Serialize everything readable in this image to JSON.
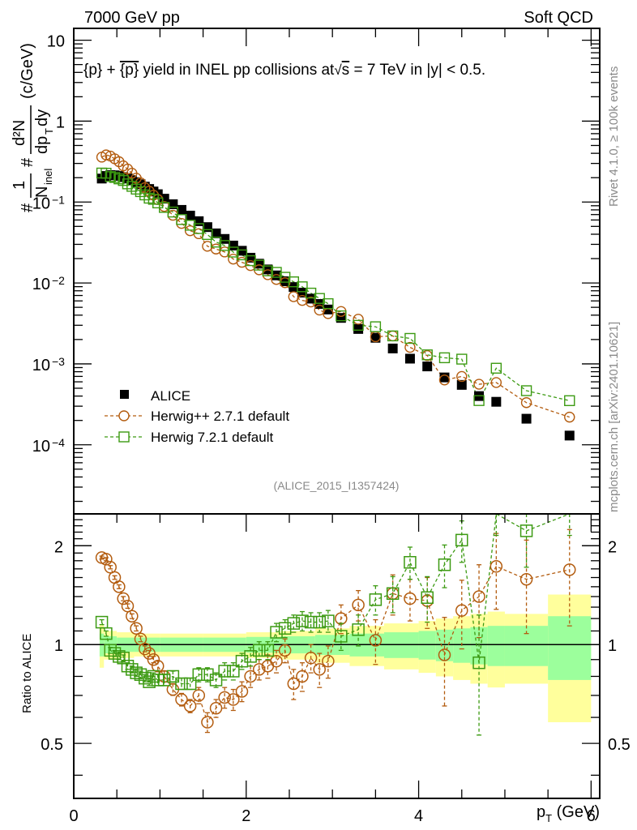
{
  "header": {
    "left": "7000 GeV pp",
    "right": "Soft QCD"
  },
  "side_labels": {
    "rivet": "Rivet 4.1.0, ≥ 100k events",
    "mcplots": "mcplots.cern.ch [arXiv:2401.10621]"
  },
  "colors": {
    "alice": "#000000",
    "herwigpp": "#b35c0f",
    "herwig7": "#3c9a12",
    "band_inner": "#9cff9c",
    "band_outer": "#ffff9c",
    "side_text": "#8a8a8a"
  },
  "chart_data": [
    {
      "type": "scatter",
      "panel": "main",
      "title": "{p} + {p̄} yield in INEL pp collisions at √s = 7 TeV in |y| < 0.5.",
      "title_parts": {
        "pre": "{p} + ",
        "bar": "{p}",
        "mid": " yield in INEL pp collisions at",
        "sqrt": "s",
        "post": " =  7 TeV in |y| < 0.5."
      },
      "ylabel": "#1/N_inel #d²N/dp_T dy (c/GeV)",
      "ylabel_parts": {
        "prefix": "#",
        "one": "1",
        "n": "N",
        "nsub": "inel",
        "hash": "#",
        "num": "d²N",
        "den": "dp",
        "densub": "T",
        "dy": "dy",
        "unit": "(c/GeV)"
      },
      "yscale": "log",
      "ylim": [
        1.4e-05,
        14
      ],
      "xlim": [
        0,
        6.1
      ],
      "ytick_labels": [
        {
          "value": 10,
          "label": "10"
        },
        {
          "value": 1,
          "label": "1"
        },
        {
          "value": 0.1,
          "label": "10",
          "exp": "−1"
        },
        {
          "value": 0.01,
          "label": "10",
          "exp": "−2"
        },
        {
          "value": 0.001,
          "label": "10",
          "exp": "−3"
        },
        {
          "value": 0.0001,
          "label": "10",
          "exp": "−4"
        }
      ],
      "legend": {
        "placement": "bottom-left",
        "entries": [
          {
            "name": "ALICE",
            "marker": "filled-square"
          },
          {
            "name": "Herwig++ 2.7.1 default",
            "marker": "open-circle",
            "line": "dashed"
          },
          {
            "name": "Herwig 7.2.1 default",
            "marker": "open-square",
            "line": "dashed"
          }
        ]
      },
      "annotation": "(ALICE_2015_I1357424)",
      "x": [
        0.325,
        0.375,
        0.425,
        0.475,
        0.525,
        0.575,
        0.625,
        0.675,
        0.725,
        0.775,
        0.825,
        0.875,
        0.925,
        0.975,
        1.05,
        1.15,
        1.25,
        1.35,
        1.45,
        1.55,
        1.65,
        1.75,
        1.85,
        1.95,
        2.05,
        2.15,
        2.25,
        2.35,
        2.45,
        2.55,
        2.65,
        2.75,
        2.85,
        2.95,
        3.1,
        3.3,
        3.5,
        3.7,
        3.9,
        4.1,
        4.3,
        4.5,
        4.7,
        4.9,
        5.25,
        5.75
      ],
      "series": [
        {
          "name": "ALICE",
          "values": [
            0.195,
            0.21,
            0.215,
            0.214,
            0.21,
            0.203,
            0.195,
            0.186,
            0.176,
            0.166,
            0.155,
            0.145,
            0.135,
            0.125,
            0.11,
            0.094,
            0.08,
            0.068,
            0.058,
            0.049,
            0.041,
            0.035,
            0.029,
            0.025,
            0.0205,
            0.0173,
            0.0147,
            0.0124,
            0.0105,
            0.0089,
            0.0076,
            0.0064,
            0.0055,
            0.0047,
            0.0037,
            0.0027,
            0.0021,
            0.00155,
            0.00116,
            0.00093,
            0.00068,
            0.00055,
            0.0004,
            0.00034,
            0.00021,
            0.00013
          ]
        },
        {
          "name": "Herwig++ 2.7.1 default",
          "ratio": [
            1.84,
            1.82,
            1.72,
            1.6,
            1.5,
            1.38,
            1.31,
            1.22,
            1.12,
            1.04,
            0.97,
            0.94,
            0.9,
            0.86,
            0.8,
            0.73,
            0.68,
            0.65,
            0.7,
            0.58,
            0.64,
            0.69,
            0.68,
            0.72,
            0.8,
            0.84,
            0.86,
            0.89,
            0.96,
            0.76,
            0.8,
            0.91,
            0.84,
            0.89,
            1.2,
            1.32,
            1.03,
            1.43,
            1.38,
            1.36,
            0.93,
            1.27,
            1.4,
            1.73,
            1.58,
            1.69
          ],
          "ratio_err": [
            0.02,
            0.02,
            0.02,
            0.02,
            0.02,
            0.02,
            0.02,
            0.02,
            0.02,
            0.02,
            0.02,
            0.02,
            0.02,
            0.03,
            0.03,
            0.03,
            0.03,
            0.03,
            0.04,
            0.04,
            0.04,
            0.05,
            0.05,
            0.05,
            0.06,
            0.06,
            0.07,
            0.07,
            0.08,
            0.08,
            0.08,
            0.09,
            0.1,
            0.1,
            0.12,
            0.14,
            0.16,
            0.2,
            0.2,
            0.24,
            0.28,
            0.3,
            0.35,
            0.45,
            0.5,
            0.55
          ]
        },
        {
          "name": "Herwig 7.2.1 default",
          "ratio": [
            1.17,
            1.08,
            0.96,
            0.94,
            0.92,
            0.91,
            0.86,
            0.84,
            0.82,
            0.81,
            0.79,
            0.77,
            0.8,
            0.78,
            0.78,
            0.8,
            0.76,
            0.76,
            0.81,
            0.81,
            0.78,
            0.83,
            0.83,
            0.89,
            0.92,
            0.96,
            0.96,
            1.09,
            1.12,
            1.16,
            1.18,
            1.17,
            1.17,
            1.18,
            1.06,
            1.11,
            1.37,
            1.43,
            1.78,
            1.39,
            1.75,
            2.08,
            0.88,
            2.6,
            2.22,
            2.7
          ],
          "ratio_err": [
            0.02,
            0.02,
            0.02,
            0.02,
            0.02,
            0.02,
            0.02,
            0.02,
            0.02,
            0.02,
            0.02,
            0.02,
            0.02,
            0.03,
            0.03,
            0.03,
            0.03,
            0.03,
            0.04,
            0.04,
            0.04,
            0.05,
            0.05,
            0.05,
            0.06,
            0.06,
            0.06,
            0.07,
            0.07,
            0.07,
            0.08,
            0.08,
            0.08,
            0.09,
            0.1,
            0.12,
            0.14,
            0.18,
            0.2,
            0.22,
            0.26,
            0.3,
            0.35,
            0.45,
            0.5,
            0.55
          ]
        }
      ]
    },
    {
      "type": "scatter",
      "panel": "ratio",
      "ylabel": "Ratio to ALICE",
      "xlabel": "p_T (GeV)",
      "xlabel_parts": {
        "p": "p",
        "sub": "T",
        "unit": " (GeV)"
      },
      "yscale": "log",
      "ylim": [
        0.34,
        2.5
      ],
      "xlim": [
        0,
        6.1
      ],
      "reference_line": 1,
      "xtick_labels": [
        {
          "value": 0,
          "label": "0"
        },
        {
          "value": 2,
          "label": "2"
        },
        {
          "value": 4,
          "label": "4"
        },
        {
          "value": 6,
          "label": "6"
        }
      ],
      "ytick_labels": [
        {
          "value": 2,
          "label": "2"
        },
        {
          "value": 1,
          "label": "1"
        },
        {
          "value": 0.5,
          "label": "0.5"
        }
      ],
      "band_edges": [
        0.3,
        0.35,
        0.5,
        0.7,
        1.0,
        1.5,
        2.0,
        2.4,
        2.8,
        3.2,
        3.6,
        4.0,
        4.2,
        4.4,
        4.6,
        4.8,
        5.0,
        5.5,
        6.0
      ],
      "band_inner_half": [
        0.08,
        0.06,
        0.05,
        0.05,
        0.05,
        0.05,
        0.055,
        0.06,
        0.07,
        0.08,
        0.09,
        0.1,
        0.11,
        0.12,
        0.13,
        0.14,
        0.14,
        0.22
      ],
      "band_outer_half": [
        0.15,
        0.1,
        0.09,
        0.08,
        0.08,
        0.08,
        0.09,
        0.1,
        0.12,
        0.14,
        0.16,
        0.18,
        0.2,
        0.22,
        0.24,
        0.26,
        0.24,
        0.42
      ]
    }
  ]
}
